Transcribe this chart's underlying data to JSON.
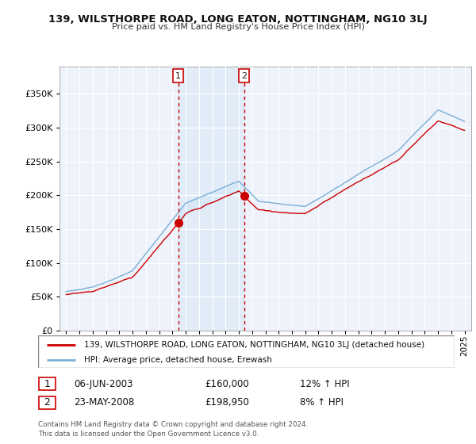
{
  "title": "139, WILSTHORPE ROAD, LONG EATON, NOTTINGHAM, NG10 3LJ",
  "subtitle": "Price paid vs. HM Land Registry's House Price Index (HPI)",
  "red_label": "139, WILSTHORPE ROAD, LONG EATON, NOTTINGHAM, NG10 3LJ (detached house)",
  "blue_label": "HPI: Average price, detached house, Erewash",
  "annotation1": {
    "num": "1",
    "date": "06-JUN-2003",
    "price": "£160,000",
    "pct": "12% ↑ HPI"
  },
  "annotation2": {
    "num": "2",
    "date": "23-MAY-2008",
    "price": "£198,950",
    "pct": "8% ↑ HPI"
  },
  "footnote": "Contains HM Land Registry data © Crown copyright and database right 2024.\nThis data is licensed under the Open Government Licence v3.0.",
  "ylim": [
    0,
    390000
  ],
  "yticks": [
    0,
    50000,
    100000,
    150000,
    200000,
    250000,
    300000,
    350000
  ],
  "background_color": "#ffffff",
  "plot_bg": "#eef2fa",
  "grid_color": "#ffffff",
  "red_color": "#cc0000",
  "blue_color": "#7aaed6",
  "fill_color": "#d6e8f7",
  "vline_color": "#cc0000",
  "sale1_x": 2003.43,
  "sale1_y": 160000,
  "sale2_x": 2008.39,
  "sale2_y": 198950,
  "xmin": 1994.5,
  "xmax": 2025.5
}
